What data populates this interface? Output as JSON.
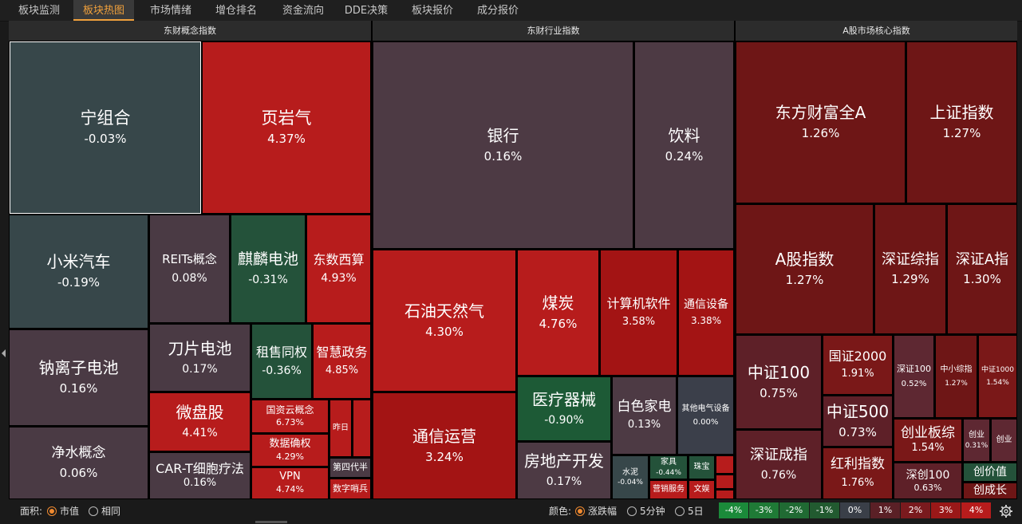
{
  "tabs": [
    {
      "label": "板块监测",
      "active": false
    },
    {
      "label": "板块热图",
      "active": true
    },
    {
      "label": "市场情绪",
      "active": false
    },
    {
      "label": "增仓排名",
      "active": false
    },
    {
      "label": "资金流向",
      "active": false
    },
    {
      "label": "DDE决策",
      "active": false
    },
    {
      "label": "板块报价",
      "active": false
    },
    {
      "label": "成分报价",
      "active": false
    }
  ],
  "sections": [
    {
      "title": "东财概念指数"
    },
    {
      "title": "东财行业指数"
    },
    {
      "title": "A股市场核心指数"
    }
  ],
  "concept_cells": [
    {
      "name": "宁组合",
      "change": "-0.03%",
      "color": "#37474a",
      "selected": true
    },
    {
      "name": "页岩气",
      "change": "4.37%",
      "color": "#b71c1c"
    },
    {
      "name": "小米汽车",
      "change": "-0.19%",
      "color": "#37474a"
    },
    {
      "name": "REITs概念",
      "change": "0.08%",
      "color": "#4a3a44"
    },
    {
      "name": "麒麟电池",
      "change": "-0.31%",
      "color": "#24523a"
    },
    {
      "name": "东数西算",
      "change": "4.93%",
      "color": "#b71c1c"
    },
    {
      "name": "钠离子电池",
      "change": "0.16%",
      "color": "#4a3a44"
    },
    {
      "name": "刀片电池",
      "change": "0.17%",
      "color": "#4a3a44"
    },
    {
      "name": "租售同权",
      "change": "-0.36%",
      "color": "#24523a"
    },
    {
      "name": "智慧政务",
      "change": "4.85%",
      "color": "#b71c1c"
    },
    {
      "name": "微盘股",
      "change": "4.41%",
      "color": "#b71c1c"
    },
    {
      "name": "国资云概念",
      "change": "6.73%",
      "color": "#b71c1c"
    },
    {
      "name": "昨日",
      "change": "",
      "color": "#b71c1c"
    },
    {
      "name": "",
      "change": "",
      "color": "#b71c1c"
    },
    {
      "name": "数据确权",
      "change": "4.29%",
      "color": "#b71c1c"
    },
    {
      "name": "净水概念",
      "change": "0.06%",
      "color": "#4a3a44"
    },
    {
      "name": "CAR-T细胞疗法",
      "change": "0.16%",
      "color": "#4a3a44"
    },
    {
      "name": "VPN",
      "change": "4.74%",
      "color": "#b71c1c"
    },
    {
      "name": "第四代半",
      "change": "",
      "color": "#4a3a44"
    },
    {
      "name": "数字哨兵",
      "change": "",
      "color": "#b71c1c"
    }
  ],
  "industry_cells": [
    {
      "name": "银行",
      "change": "0.16%",
      "color": "#4d3a44"
    },
    {
      "name": "饮料",
      "change": "0.24%",
      "color": "#4d3a44"
    },
    {
      "name": "石油天然气",
      "change": "4.30%",
      "color": "#b71c1c"
    },
    {
      "name": "煤炭",
      "change": "4.76%",
      "color": "#b71c1c"
    },
    {
      "name": "计算机软件",
      "change": "3.58%",
      "color": "#a31414"
    },
    {
      "name": "通信设备",
      "change": "3.38%",
      "color": "#a31414"
    },
    {
      "name": "通信运营",
      "change": "3.24%",
      "color": "#a31414"
    },
    {
      "name": "医疗器械",
      "change": "-0.90%",
      "color": "#1d5a36"
    },
    {
      "name": "白色家电",
      "change": "0.13%",
      "color": "#4d3a44"
    },
    {
      "name": "其他电气设备",
      "change": "0.00%",
      "color": "#3b3f4a"
    },
    {
      "name": "房地产开发",
      "change": "0.17%",
      "color": "#4d3a44"
    },
    {
      "name": "水泥",
      "change": "-0.04%",
      "color": "#37474a"
    },
    {
      "name": "家具",
      "change": "-0.44%",
      "color": "#24523a"
    },
    {
      "name": "珠宝",
      "change": "",
      "color": "#24523a"
    },
    {
      "name": "营销服务",
      "change": "",
      "color": "#b71c1c"
    },
    {
      "name": "文娱",
      "change": "",
      "color": "#b71c1c"
    },
    {
      "name": "",
      "change": "",
      "color": "#b71c1c"
    },
    {
      "name": "",
      "change": "",
      "color": "#b71c1c"
    },
    {
      "name": "",
      "change": "",
      "color": "#b71c1c"
    }
  ],
  "core_cells": [
    {
      "name": "东方财富全A",
      "change": "1.26%",
      "color": "#6e1616"
    },
    {
      "name": "上证指数",
      "change": "1.27%",
      "color": "#6e1616"
    },
    {
      "name": "A股指数",
      "change": "1.27%",
      "color": "#6e1616"
    },
    {
      "name": "深证综指",
      "change": "1.29%",
      "color": "#6e1616"
    },
    {
      "name": "深证A指",
      "change": "1.30%",
      "color": "#6e1616"
    },
    {
      "name": "中证100",
      "change": "0.75%",
      "color": "#5e2028"
    },
    {
      "name": "国证2000",
      "change": "1.91%",
      "color": "#7a1818"
    },
    {
      "name": "深证100",
      "change": "0.52%",
      "color": "#5e2832"
    },
    {
      "name": "中小综指",
      "change": "1.27%",
      "color": "#6e1616"
    },
    {
      "name": "中证1000",
      "change": "1.54%",
      "color": "#7a1818"
    },
    {
      "name": "中证500",
      "change": "0.73%",
      "color": "#5e2028"
    },
    {
      "name": "深证成指",
      "change": "0.76%",
      "color": "#5e2028"
    },
    {
      "name": "创业板综",
      "change": "1.54%",
      "color": "#7a1818"
    },
    {
      "name": "创业",
      "change": "0.31%",
      "color": "#5e2832"
    },
    {
      "name": "创业",
      "change": "",
      "color": "#5e2832"
    },
    {
      "name": "红利指数",
      "change": "1.76%",
      "color": "#7a1818"
    },
    {
      "name": "深创100",
      "change": "0.63%",
      "color": "#5e2028"
    },
    {
      "name": "创价值",
      "change": "",
      "color": "#24523a"
    },
    {
      "name": "创成长",
      "change": "",
      "color": "#6e1616"
    }
  ],
  "bottom": {
    "area_label": "面积:",
    "area_options": [
      {
        "label": "市值",
        "on": true
      },
      {
        "label": "相同",
        "on": false
      }
    ],
    "color_label": "颜色:",
    "color_options": [
      {
        "label": "涨跌幅",
        "on": true
      },
      {
        "label": "5分钟",
        "on": false
      },
      {
        "label": "5日",
        "on": false
      }
    ],
    "legend": [
      {
        "label": "-4%",
        "color": "#1b8a3a"
      },
      {
        "label": "-3%",
        "color": "#1f7a36"
      },
      {
        "label": "-2%",
        "color": "#206a33"
      },
      {
        "label": "-1%",
        "color": "#225a30"
      },
      {
        "label": "0%",
        "color": "#3a3f48"
      },
      {
        "label": "1%",
        "color": "#5a2026"
      },
      {
        "label": "2%",
        "color": "#7a1a1e"
      },
      {
        "label": "3%",
        "color": "#9a1818"
      },
      {
        "label": "4%",
        "color": "#b71c1c"
      }
    ]
  }
}
